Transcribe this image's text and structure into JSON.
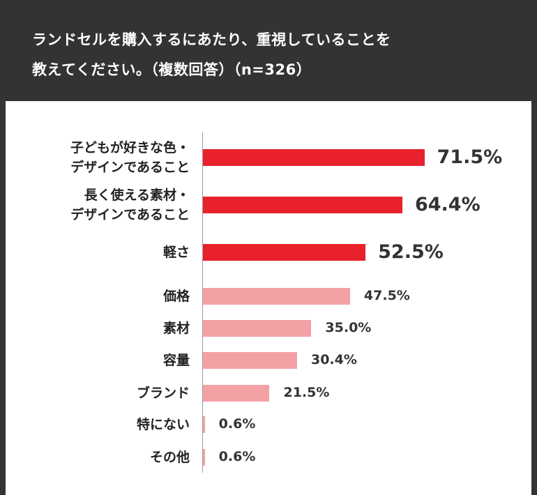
{
  "title_lines": [
    "ランドセルを購入するにあたり、重視していることを",
    "教えてください。（複数回答）（n=326）"
  ],
  "colors": {
    "background": "#333333",
    "panel": "#ffffff",
    "highlight": "#e8212d",
    "normal": "#f4a1a6"
  },
  "chart_data": {
    "type": "bar",
    "orientation": "horizontal",
    "title": "ランドセルを購入するにあたり、重視していることを教えてください。（複数回答）（n=326）",
    "unit": "%",
    "categories": [
      [
        "子どもが好きな色・",
        "デザインであること"
      ],
      [
        "長く使える素材・",
        "デザインであること"
      ],
      [
        "軽さ"
      ],
      [
        "価格"
      ],
      [
        "素材"
      ],
      [
        "容量"
      ],
      [
        "ブランド"
      ],
      [
        "特にない"
      ],
      [
        "その他"
      ]
    ],
    "values": [
      71.5,
      64.4,
      52.5,
      47.5,
      35.0,
      30.4,
      21.5,
      0.6,
      0.6
    ],
    "value_labels": [
      "71.5%",
      "64.4%",
      "52.5%",
      "47.5%",
      "35.0%",
      "30.4%",
      "21.5%",
      "0.6%",
      "0.6%"
    ],
    "highlighted": [
      true,
      true,
      true,
      false,
      false,
      false,
      false,
      false,
      false
    ],
    "xlim": [
      0,
      100
    ],
    "grid": false,
    "legend": "none"
  }
}
